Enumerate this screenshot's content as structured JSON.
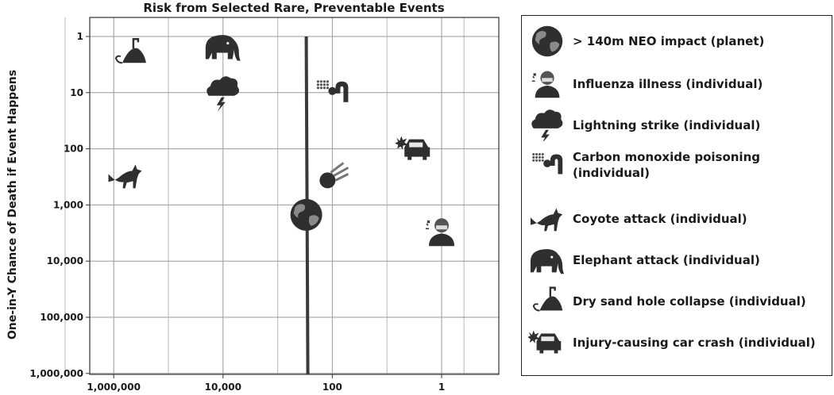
{
  "chart_data": {
    "type": "scatter",
    "title": "Risk from Selected Rare, Preventable Events",
    "ylabel": "One-in-Y Chance of Death if Event Happens",
    "xlabel": "",
    "x_scale": "log-reversed",
    "y_scale": "log-reversed",
    "xlim": [
      10000000,
      0.3
    ],
    "ylim": [
      1,
      1000000
    ],
    "x_ticks": [
      1000000,
      10000,
      100,
      1
    ],
    "x_tick_labels": [
      "1,000,000",
      "10,000",
      "100",
      "1"
    ],
    "y_ticks": [
      1,
      10,
      100,
      1000,
      10000,
      100000,
      1000000
    ],
    "y_tick_labels": [
      "1",
      "10",
      "100",
      "1,000",
      "10,000",
      "100,000",
      "1,000,000"
    ],
    "grid": true,
    "vertical_line_x": 300,
    "legend_position": "right",
    "series": [
      {
        "name": "> 140m NEO impact (planet)",
        "icon": "earth-icon",
        "points": [
          {
            "x": 300,
            "y": 1500
          }
        ]
      },
      {
        "name": "Influenza illness (individual)",
        "icon": "flu-person-icon",
        "points": [
          {
            "x": 1,
            "y": 3000
          }
        ]
      },
      {
        "name": "Lightning strike (individual)",
        "icon": "lightning-cloud-icon",
        "points": [
          {
            "x": 10000,
            "y": 10
          }
        ]
      },
      {
        "name": "Carbon monoxide poisoning (individual)",
        "icon": "gas-pipe-icon",
        "points": [
          {
            "x": 100,
            "y": 10
          }
        ]
      },
      {
        "name": "Coyote attack (individual)",
        "icon": "coyote-icon",
        "points": [
          {
            "x": 600000,
            "y": 300
          }
        ]
      },
      {
        "name": "Elephant attack (individual)",
        "icon": "elephant-icon",
        "points": [
          {
            "x": 10000,
            "y": 1.5
          }
        ]
      },
      {
        "name": "Dry sand hole collapse (individual)",
        "icon": "sand-hole-icon",
        "points": [
          {
            "x": 500000,
            "y": 2
          }
        ]
      },
      {
        "name": "Injury-causing car crash (individual)",
        "icon": "car-crash-icon",
        "points": [
          {
            "x": 3,
            "y": 100
          }
        ]
      },
      {
        "name": "",
        "icon": "asteroid-icon",
        "points": [
          {
            "x": 100,
            "y": 300
          }
        ]
      }
    ]
  },
  "legend": {
    "items": [
      {
        "label": "> 140m NEO impact (planet)",
        "icon": "earth-icon"
      },
      {
        "label": "Influenza illness (individual)",
        "icon": "flu-person-icon"
      },
      {
        "label": "Lightning strike (individual)",
        "icon": "lightning-cloud-icon"
      },
      {
        "label": "Carbon monoxide poisoning (individual)",
        "icon": "gas-pipe-icon"
      },
      {
        "label": "Coyote attack (individual)",
        "icon": "coyote-icon"
      },
      {
        "label": "Elephant attack (individual)",
        "icon": "elephant-icon"
      },
      {
        "label": "Dry sand hole collapse (individual)",
        "icon": "sand-hole-icon"
      },
      {
        "label": "Injury-causing car crash (individual)",
        "icon": "car-crash-icon"
      }
    ]
  }
}
